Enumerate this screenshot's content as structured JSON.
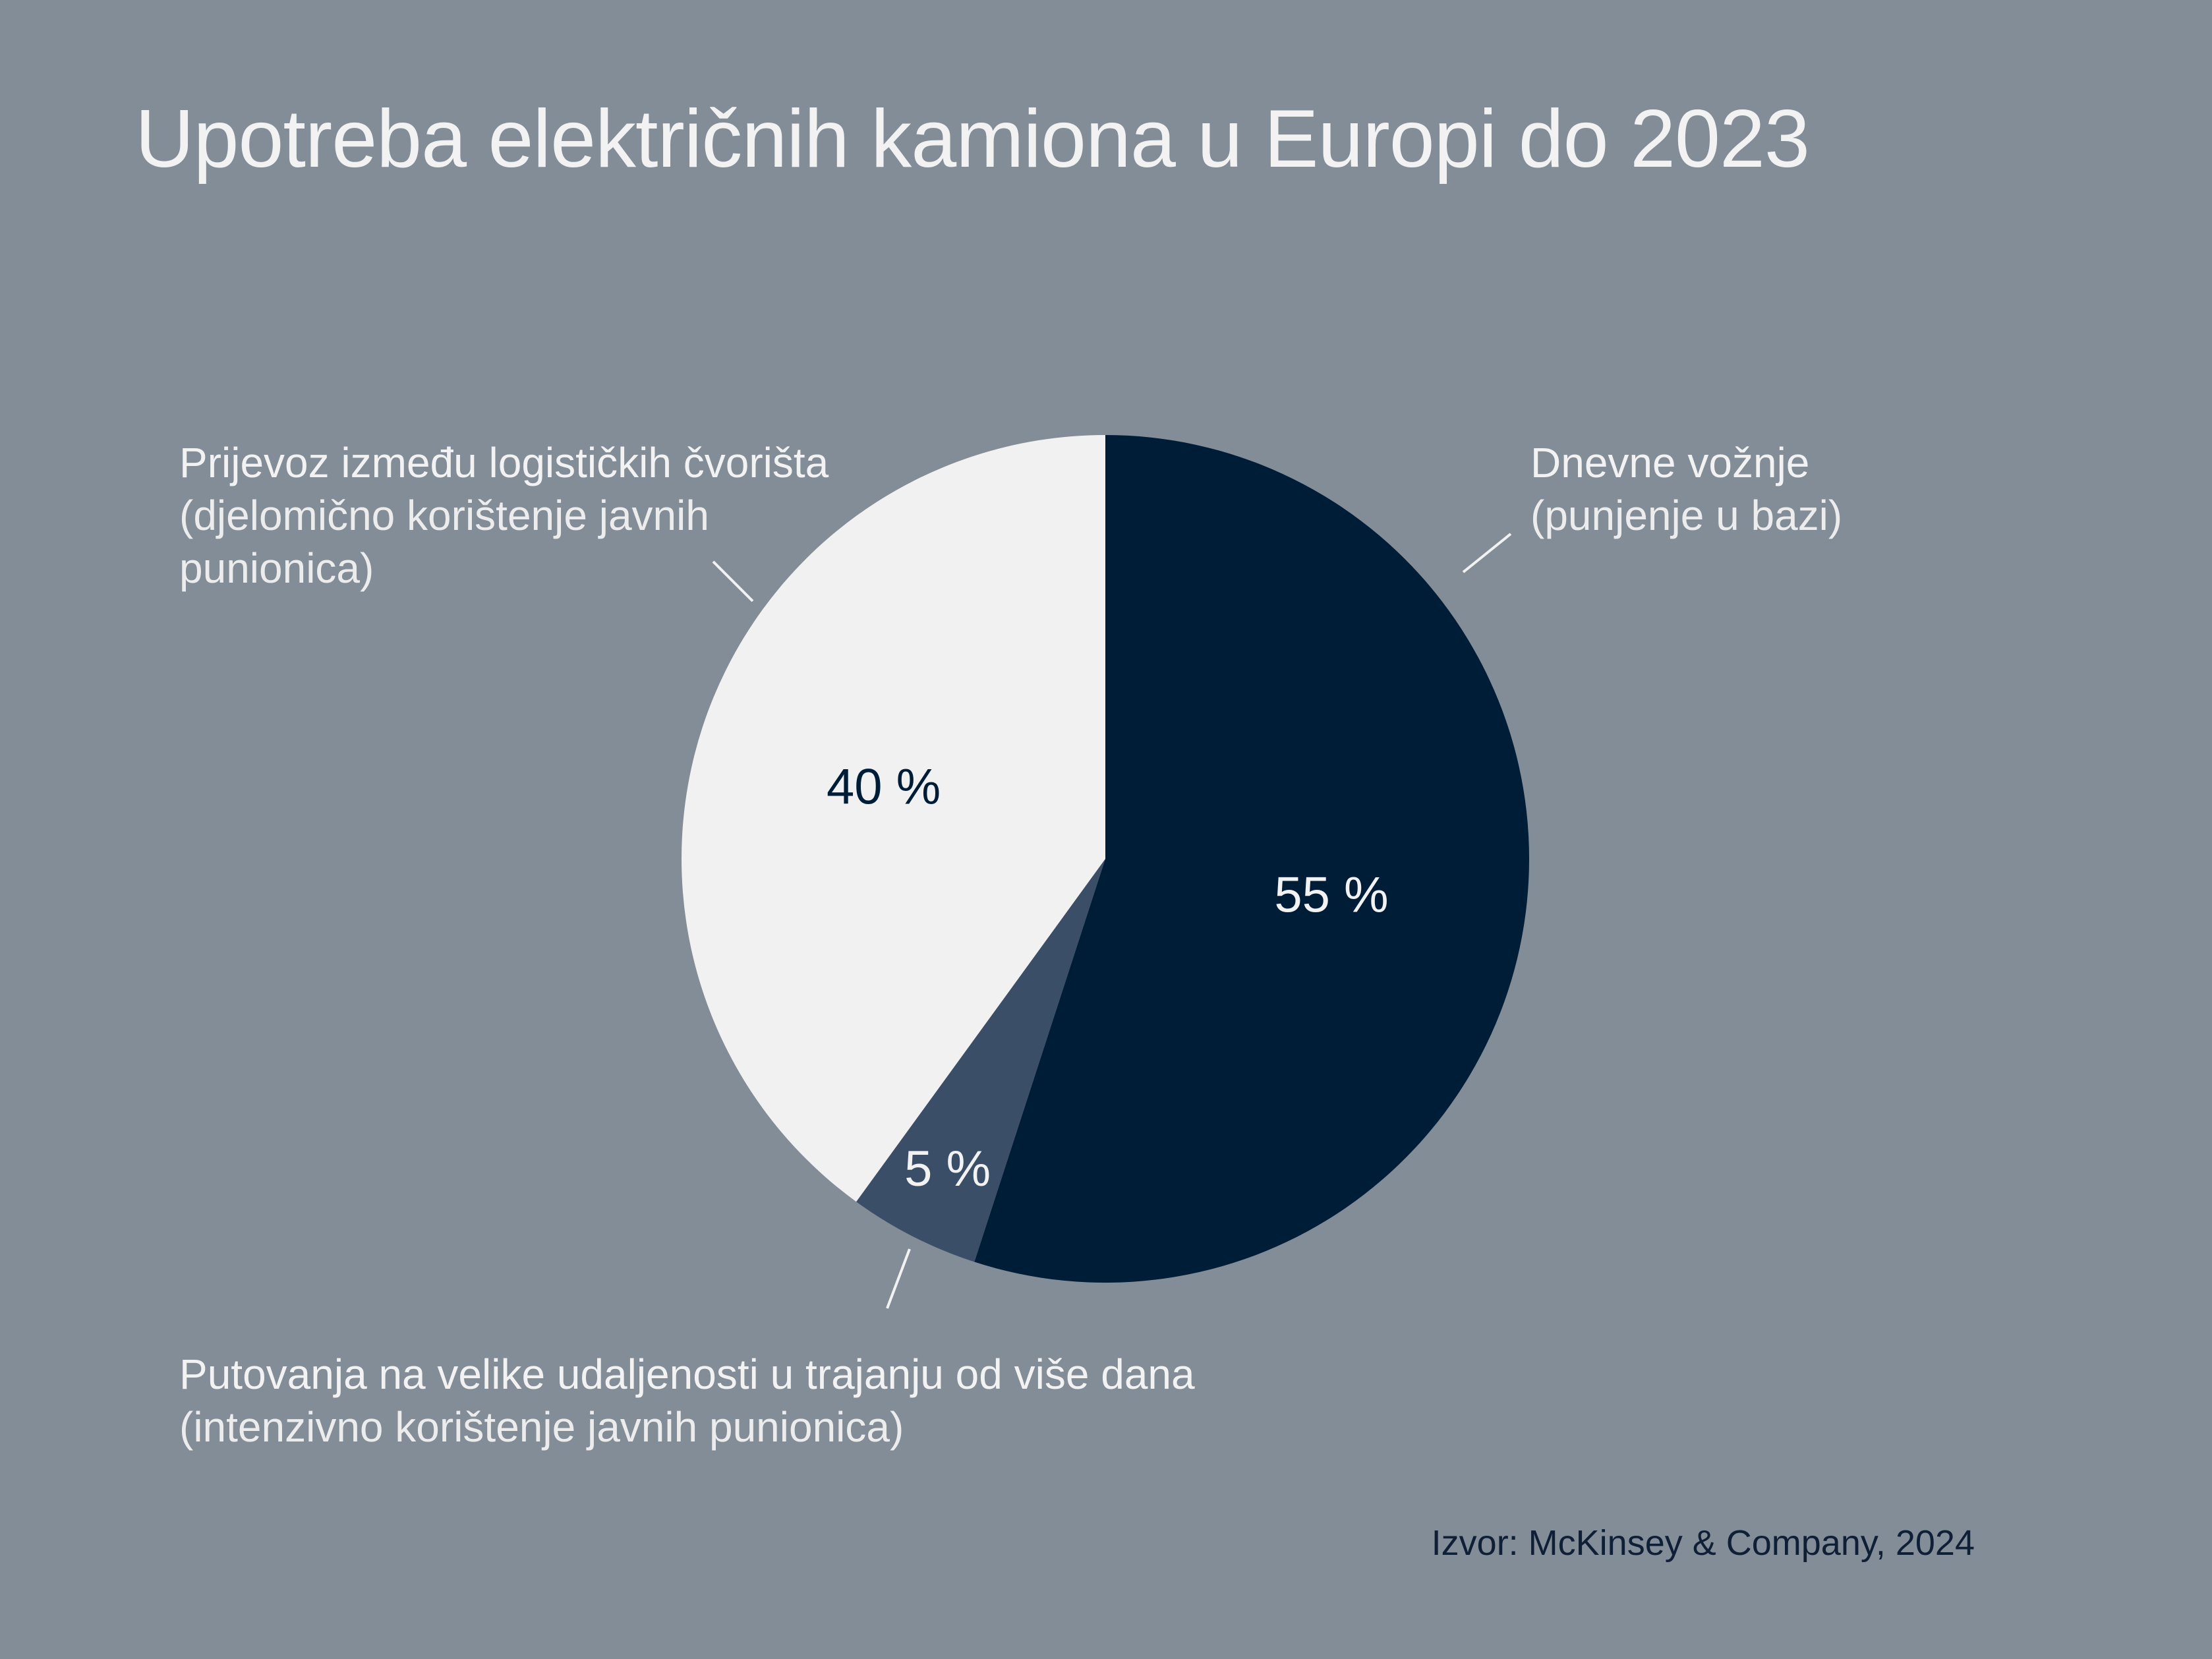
{
  "chart_data": {
    "type": "pie",
    "title": "Upotreba električnih kamiona u Europi do 2023",
    "source": "Izvor: McKinsey & Company, 2024",
    "slices": [
      {
        "label": "Dnevne vožnje",
        "sublabel": "(punjenje u bazi)",
        "value": 55,
        "value_label": "55 %",
        "color": "#001d38",
        "text_color": "#f2f2f2"
      },
      {
        "label": "Putovanja na velike udaljenosti u trajanju od više dana",
        "sublabel": "(intenzivno korištenje javnih punionica)",
        "value": 5,
        "value_label": "5 %",
        "color": "#3a4f67",
        "text_color": "#f2f2f2"
      },
      {
        "label": "Prijevoz između logističkih čvorišta",
        "sublabel_lines": [
          "(djelomično korištenje javnih",
          "punionica)"
        ],
        "value": 40,
        "value_label": "40 %",
        "color": "#f1f1f1",
        "text_color": "#001d38"
      }
    ]
  }
}
